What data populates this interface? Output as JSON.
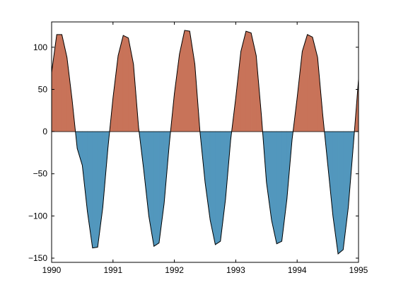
{
  "chart_data": {
    "type": "area",
    "title": "",
    "xlabel": "",
    "ylabel": "",
    "xlim": [
      1990,
      1995
    ],
    "ylim": [
      -155,
      130
    ],
    "xticks": [
      1990,
      1991,
      1992,
      1993,
      1994,
      1995
    ],
    "xtick_labels": [
      "1990",
      "1991",
      "1992",
      "1993",
      "1994",
      "1995"
    ],
    "yticks": [
      -150,
      -100,
      -50,
      0,
      50,
      100
    ],
    "ytick_labels": [
      "−150",
      "−100",
      "−50",
      "0",
      "50",
      "100"
    ],
    "grid": false,
    "legend": "none",
    "fill_above_color": "#c87359",
    "fill_below_color": "#5297bd",
    "line_color": "#000000",
    "series": [
      {
        "x": [
          1990.0,
          1990.0833,
          1990.1667,
          1990.25,
          1990.3333,
          1990.4167,
          1990.5,
          1990.5833,
          1990.6667,
          1990.75,
          1990.8333,
          1990.9167,
          1991.0,
          1991.0833,
          1991.1667,
          1991.25,
          1991.3333,
          1991.4167,
          1991.5,
          1991.5833,
          1991.6667,
          1991.75,
          1991.8333,
          1991.9167,
          1992.0,
          1992.0833,
          1992.1667,
          1992.25,
          1992.3333,
          1992.4167,
          1992.5,
          1992.5833,
          1992.6667,
          1992.75,
          1992.8333,
          1992.9167,
          1993.0,
          1993.0833,
          1993.1667,
          1993.25,
          1993.3333,
          1993.4167,
          1993.5,
          1993.5833,
          1993.6667,
          1993.75,
          1993.8333,
          1993.9167,
          1994.0,
          1994.0833,
          1994.1667,
          1994.25,
          1994.3333,
          1994.4167,
          1994.5,
          1994.5833,
          1994.6667,
          1994.75,
          1994.8333,
          1994.9167,
          1995.0
        ],
        "y": [
          70,
          115,
          115,
          88,
          38,
          -20,
          -40,
          -95,
          -138,
          -137,
          -90,
          -20,
          40,
          90,
          114,
          111,
          80,
          5,
          -45,
          -100,
          -136,
          -132,
          -85,
          -15,
          45,
          92,
          120,
          119,
          80,
          0,
          -60,
          -105,
          -134,
          -130,
          -80,
          -10,
          40,
          95,
          119,
          117,
          90,
          20,
          -60,
          -105,
          -133,
          -130,
          -80,
          -10,
          40,
          95,
          115,
          112,
          88,
          20,
          -40,
          -100,
          -145,
          -140,
          -90,
          -15,
          62
        ]
      }
    ]
  }
}
